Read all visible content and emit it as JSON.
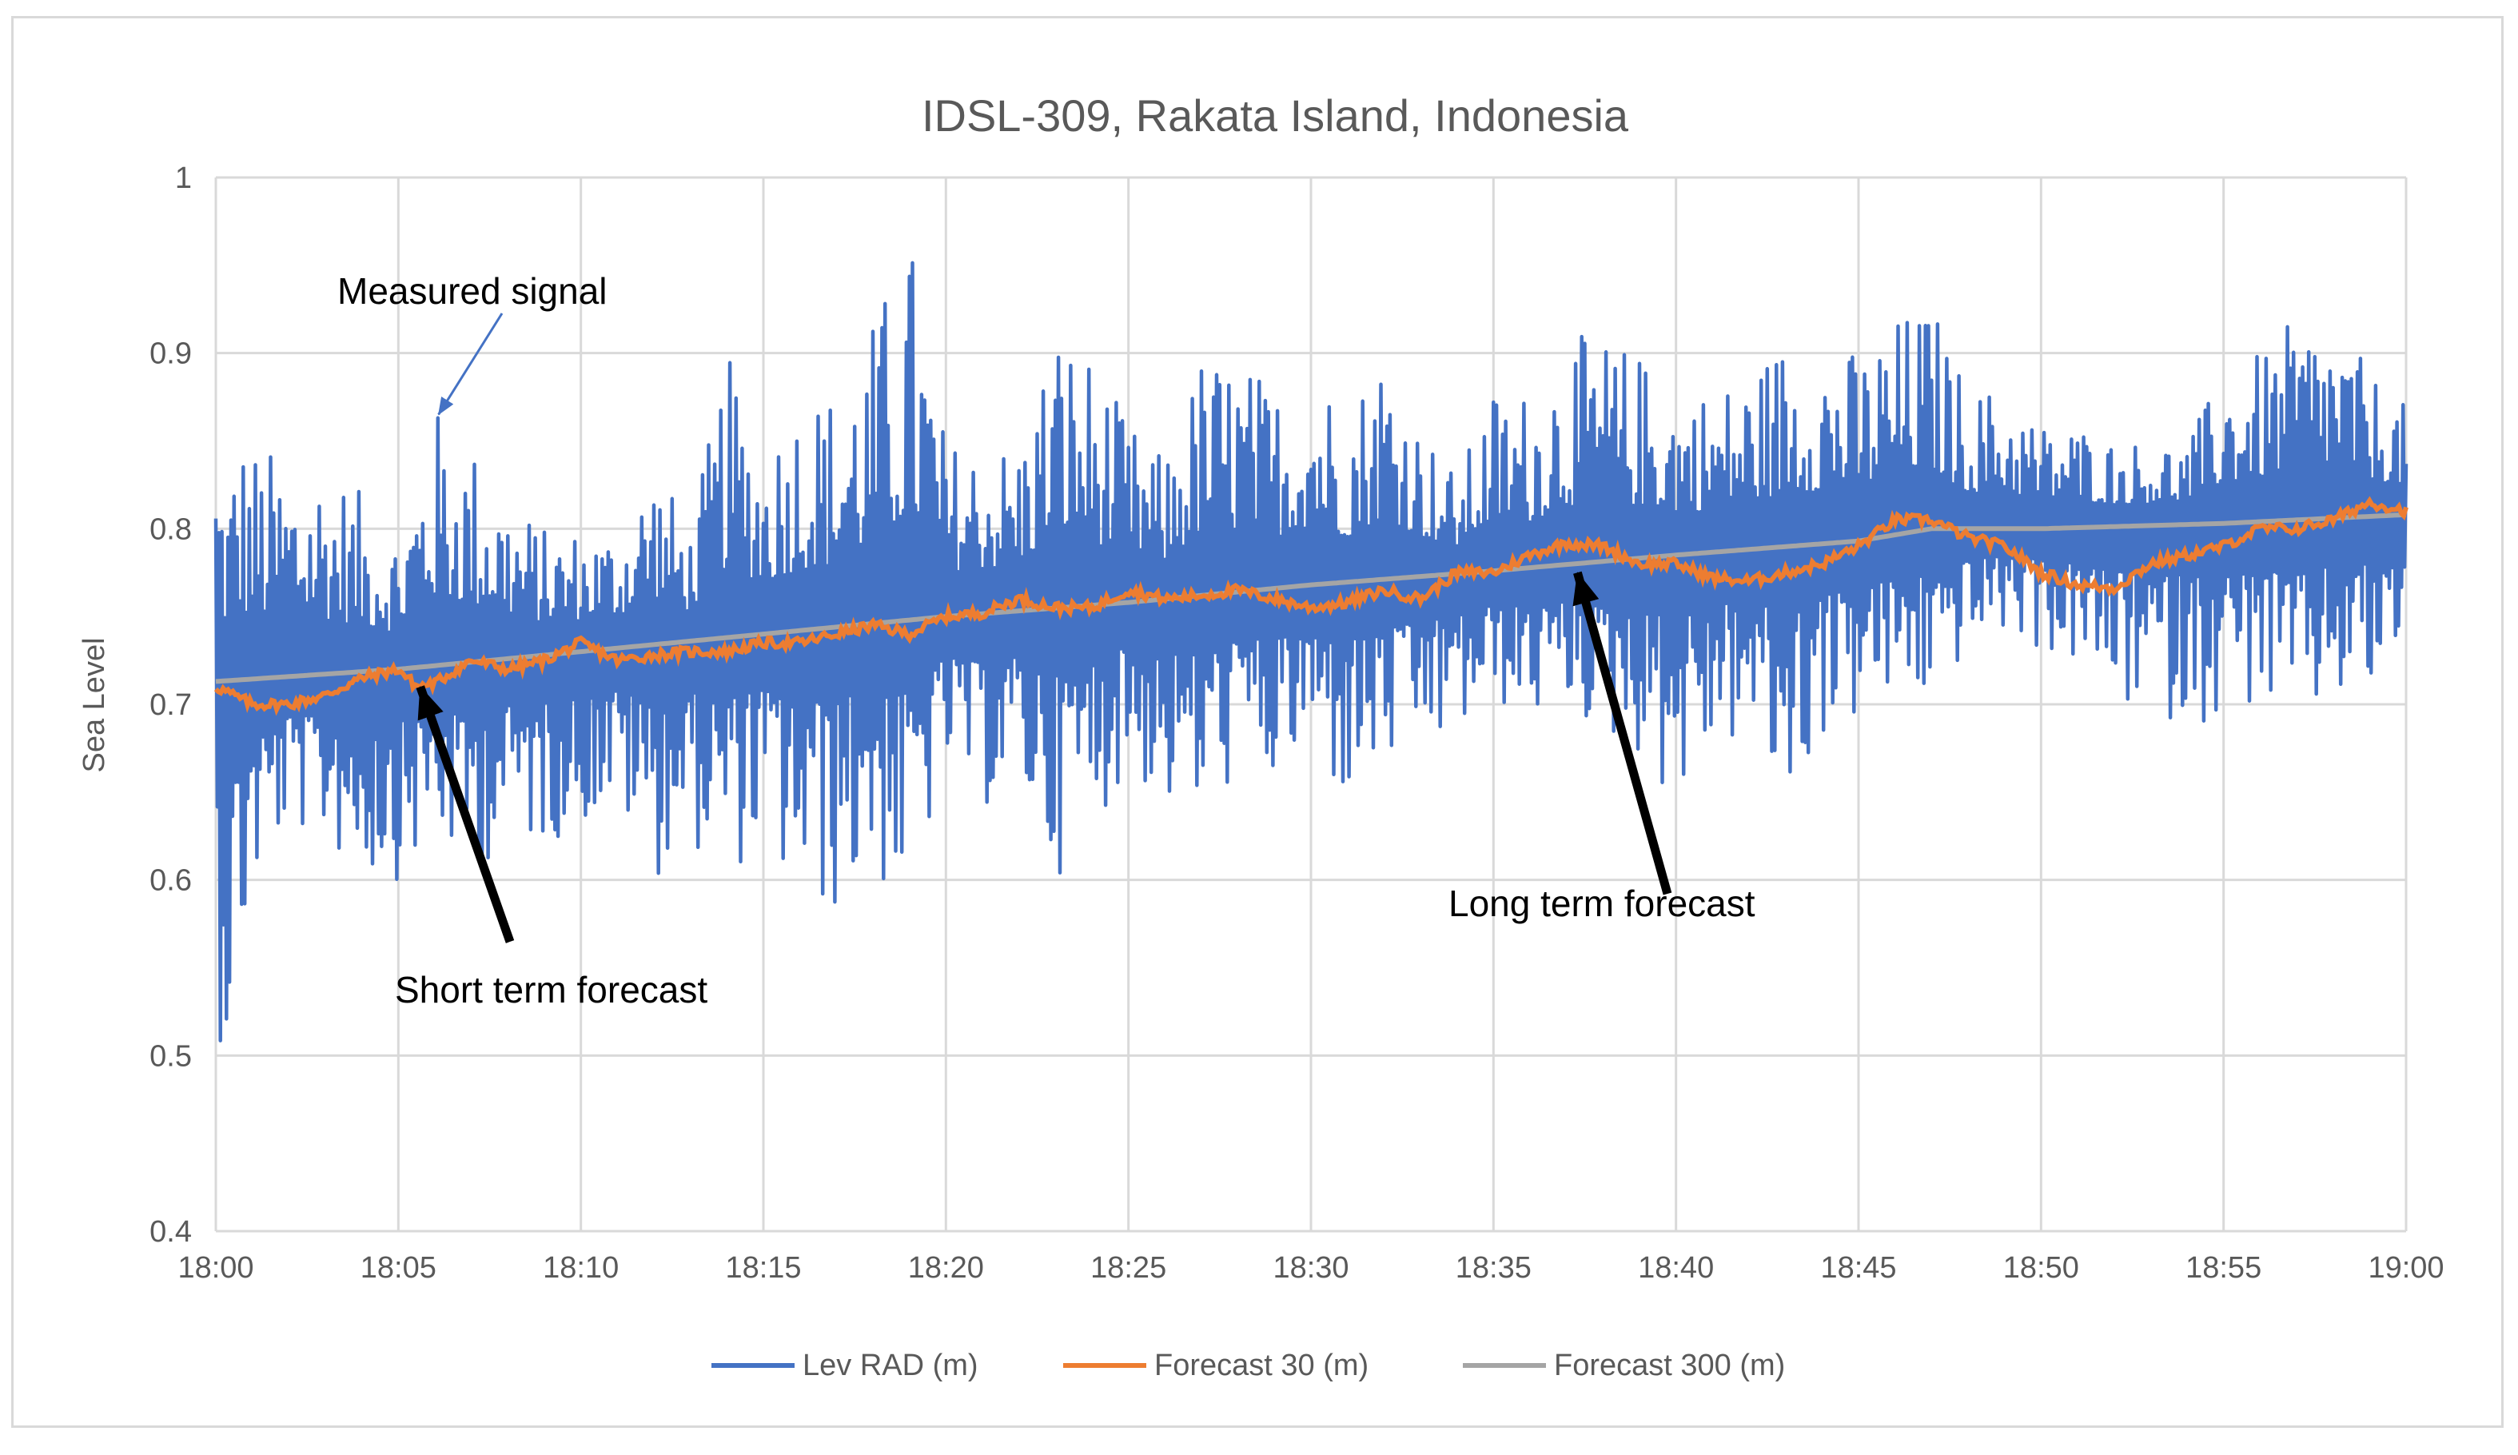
{
  "chart_data": {
    "type": "line",
    "title": "IDSL-309, Rakata Island, Indonesia",
    "xlabel": "",
    "ylabel": "Sea Level",
    "ylim": [
      0.4,
      1.0
    ],
    "yticks": [
      "0.4",
      "0.5",
      "0.6",
      "0.7",
      "0.8",
      "0.9",
      "1"
    ],
    "xlim_minutes": [
      0,
      60
    ],
    "xticks": [
      "18:00",
      "18:05",
      "18:10",
      "18:15",
      "18:20",
      "18:25",
      "18:30",
      "18:35",
      "18:40",
      "18:45",
      "18:50",
      "18:55",
      "19:00"
    ],
    "grid": true,
    "legend_position": "bottom",
    "series": [
      {
        "name": "Lev RAD (m)",
        "color": "#4472C4",
        "style": "noisy oscillation about the long-term trend",
        "x_minutes": [
          0,
          0.3,
          0.6,
          1,
          2,
          3,
          4,
          5,
          6,
          7,
          8,
          9,
          10,
          11,
          12,
          13,
          14,
          15,
          16,
          17,
          18,
          19,
          19.2,
          20,
          21,
          22,
          23,
          24,
          25,
          26,
          27,
          28,
          29,
          30,
          31,
          32,
          33,
          34,
          35,
          36,
          37,
          38,
          39,
          40,
          41,
          42,
          43,
          44,
          45,
          46,
          47,
          48,
          49,
          50,
          51,
          52,
          53,
          54,
          55,
          56,
          57,
          58,
          59,
          60
        ],
        "upper_envelope": [
          0.86,
          0.83,
          0.86,
          0.85,
          0.84,
          0.84,
          0.82,
          0.8,
          0.87,
          0.85,
          0.82,
          0.8,
          0.8,
          0.8,
          0.84,
          0.8,
          0.9,
          0.85,
          0.88,
          0.88,
          0.92,
          0.97,
          0.95,
          0.85,
          0.85,
          0.85,
          0.92,
          0.9,
          0.86,
          0.84,
          0.9,
          0.9,
          0.88,
          0.9,
          0.87,
          0.91,
          0.86,
          0.83,
          0.88,
          0.88,
          0.91,
          0.91,
          0.9,
          0.88,
          0.88,
          0.89,
          0.91,
          0.91,
          0.9,
          0.92,
          0.93,
          0.88,
          0.88,
          0.86,
          0.86,
          0.85,
          0.85,
          0.85,
          0.89,
          0.9,
          0.92,
          0.92,
          0.89,
          0.87
        ],
        "lower_envelope": [
          0.52,
          0.49,
          0.53,
          0.59,
          0.63,
          0.62,
          0.6,
          0.6,
          0.62,
          0.6,
          0.62,
          0.62,
          0.63,
          0.64,
          0.6,
          0.62,
          0.6,
          0.62,
          0.58,
          0.58,
          0.6,
          0.58,
          0.6,
          0.66,
          0.64,
          0.65,
          0.6,
          0.63,
          0.66,
          0.64,
          0.63,
          0.66,
          0.65,
          0.67,
          0.64,
          0.66,
          0.67,
          0.68,
          0.7,
          0.69,
          0.7,
          0.68,
          0.67,
          0.64,
          0.67,
          0.68,
          0.63,
          0.68,
          0.69,
          0.7,
          0.7,
          0.73,
          0.74,
          0.73,
          0.72,
          0.7,
          0.69,
          0.69,
          0.69,
          0.7,
          0.68,
          0.7,
          0.7,
          0.73
        ]
      },
      {
        "name": "Forecast 30 (m)",
        "color": "#ED7D31",
        "x_minutes": [
          0,
          1,
          2,
          3,
          4,
          5,
          5.5,
          6,
          7,
          8,
          9,
          10,
          11,
          12,
          13,
          14,
          15,
          16,
          17,
          18,
          19,
          20,
          21,
          22,
          23,
          24,
          25,
          26,
          27,
          28,
          29,
          30,
          31,
          32,
          33,
          34,
          35,
          36,
          37,
          38,
          39,
          40,
          41,
          42,
          43,
          44,
          45,
          46,
          47,
          48,
          49,
          50,
          51,
          52,
          53,
          54,
          55,
          56,
          57,
          58,
          59,
          60
        ],
        "values": [
          0.71,
          0.7,
          0.7,
          0.705,
          0.715,
          0.72,
          0.71,
          0.712,
          0.725,
          0.72,
          0.725,
          0.735,
          0.725,
          0.728,
          0.73,
          0.73,
          0.735,
          0.735,
          0.74,
          0.745,
          0.74,
          0.75,
          0.752,
          0.76,
          0.755,
          0.755,
          0.765,
          0.76,
          0.762,
          0.765,
          0.76,
          0.755,
          0.758,
          0.765,
          0.76,
          0.775,
          0.775,
          0.785,
          0.792,
          0.79,
          0.78,
          0.78,
          0.772,
          0.77,
          0.775,
          0.78,
          0.79,
          0.805,
          0.805,
          0.795,
          0.79,
          0.775,
          0.768,
          0.766,
          0.78,
          0.785,
          0.79,
          0.8,
          0.8,
          0.805,
          0.815,
          0.81
        ]
      },
      {
        "name": "Forecast 300 (m)",
        "color": "#A5A5A5",
        "x_minutes": [
          0,
          5,
          10,
          15,
          20,
          25,
          30,
          35,
          40,
          45,
          47,
          50,
          55,
          60
        ],
        "values": [
          0.713,
          0.72,
          0.73,
          0.74,
          0.75,
          0.758,
          0.768,
          0.776,
          0.785,
          0.793,
          0.8,
          0.8,
          0.803,
          0.808
        ]
      }
    ],
    "annotations": [
      {
        "text": "Measured signal",
        "points_to": {
          "x_minutes": 6.1,
          "y": 0.865
        }
      },
      {
        "text": "Short term forecast",
        "points_to": {
          "x_minutes": 5.6,
          "y": 0.71
        }
      },
      {
        "text": "Long term forecast",
        "points_to": {
          "x_minutes": 37.3,
          "y": 0.775
        }
      }
    ]
  }
}
